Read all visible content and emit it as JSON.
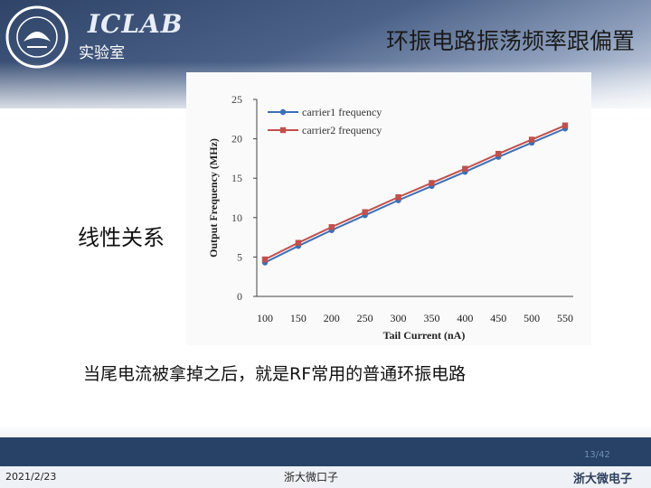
{
  "header": {
    "logo_text": "ICLAB",
    "logo_sub": "实验室",
    "title": "环振电路振荡频率跟偏置"
  },
  "label_linear": "线性关系",
  "chart_data": {
    "type": "line",
    "x": [
      100,
      150,
      200,
      250,
      300,
      350,
      400,
      450,
      500,
      550
    ],
    "series": [
      {
        "name": "carrier1 frequency",
        "color": "#3f6fb4",
        "values": [
          4.3,
          6.4,
          8.4,
          10.3,
          12.2,
          14.0,
          15.8,
          17.7,
          19.5,
          21.3
        ]
      },
      {
        "name": "carrier2 frequency",
        "color": "#c0504d",
        "values": [
          4.7,
          6.8,
          8.8,
          10.7,
          12.6,
          14.4,
          16.2,
          18.1,
          19.9,
          21.7
        ]
      }
    ],
    "xlabel": "Tail Current (nA)",
    "ylabel": "Output Frequency (MHz)",
    "ylim": [
      0,
      25
    ],
    "yticks": [
      "0",
      "5",
      "10",
      "15",
      "20",
      "25"
    ],
    "xticks": [
      "100",
      "150",
      "200",
      "250",
      "300",
      "350",
      "400",
      "450",
      "500",
      "550"
    ],
    "legend": "top-left",
    "grid": false
  },
  "caption": "当尾电流被拿掉之后，就是RF常用的普通环振电路",
  "footer": {
    "page": "13/42",
    "date": "2021/2/23",
    "center": "浙大微口子",
    "corner_logo": "浙大微电子"
  }
}
